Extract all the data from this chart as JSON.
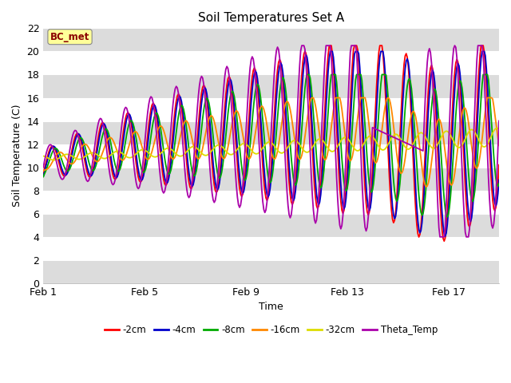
{
  "title": "Soil Temperatures Set A",
  "xlabel": "Time",
  "ylabel": "Soil Temperature (C)",
  "ylim": [
    0,
    22
  ],
  "yticks": [
    0,
    2,
    4,
    6,
    8,
    10,
    12,
    14,
    16,
    18,
    20,
    22
  ],
  "xtick_labels": [
    "Feb 1",
    "Feb 5",
    "Feb 9",
    "Feb 13",
    "Feb 17"
  ],
  "xtick_positions": [
    0,
    96,
    192,
    288,
    384
  ],
  "total_hours": 432,
  "annotation_text": "BC_met",
  "annotation_color": "#8B0000",
  "annotation_bg": "#FFFF99",
  "series_colors": {
    "-2cm": "#FF0000",
    "-4cm": "#0000CC",
    "-8cm": "#00AA00",
    "-16cm": "#FF8800",
    "-32cm": "#DDDD00",
    "Theta_Temp": "#AA00AA"
  },
  "legend_labels": [
    "-2cm",
    "-4cm",
    "-8cm",
    "-16cm",
    "-32cm",
    "Theta_Temp"
  ],
  "plot_bg": "#FFFFFF",
  "fig_bg": "#FFFFFF",
  "band_color": "#DCDCDC",
  "title_fontsize": 11,
  "axis_label_fontsize": 9,
  "tick_fontsize": 9
}
